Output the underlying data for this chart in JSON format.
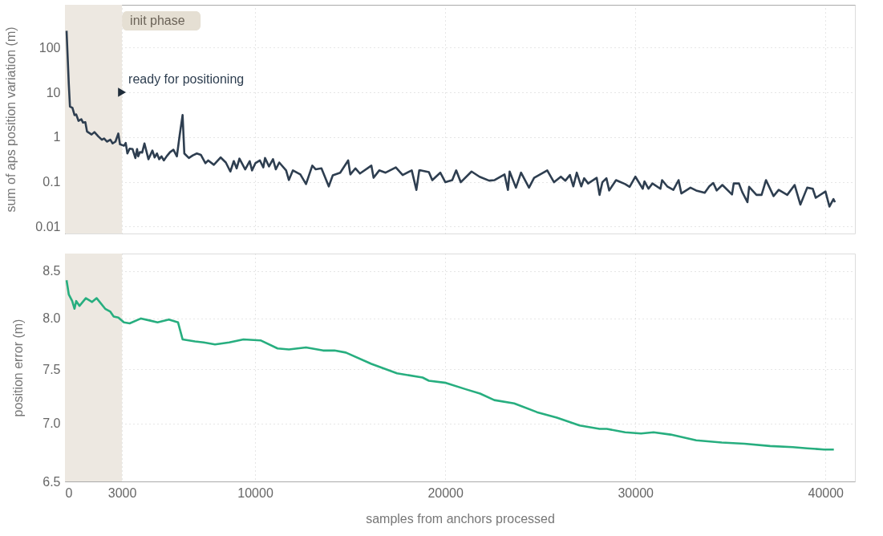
{
  "chart_data": [
    {
      "type": "line",
      "ylabel": "sum of aps position variation (m)",
      "log": true,
      "grid": true,
      "marker": "none",
      "line_style": "solid",
      "tick_labels": "y",
      "xlim": [
        0,
        41550
      ],
      "xticks": [
        0,
        3000,
        10000,
        20000,
        30000,
        40000
      ],
      "ylim": [
        0.007,
        900
      ],
      "yticks": [
        0.01,
        0.1,
        1,
        10,
        100
      ],
      "bands": [
        {
          "axis": "x",
          "from": 0,
          "to": 3000,
          "label": "init phase",
          "color": "#ede8e1"
        }
      ],
      "annotations": [
        {
          "text": "ready for positioning",
          "x": 3000,
          "y": 10
        }
      ],
      "series": [
        {
          "color": "#2e3e50",
          "x": [
            84,
            200,
            263,
            393,
            503,
            592,
            712,
            862,
            951,
            1071,
            1160,
            1400,
            1550,
            1760,
            1940,
            2060,
            2207,
            2387,
            2508,
            2656,
            2806,
            2895,
            3103,
            3195,
            3284,
            3403,
            3553,
            3703,
            3793,
            3853,
            3942,
            4062,
            4181,
            4390,
            4600,
            4718,
            4838,
            4958,
            5078,
            5198,
            5347,
            5528,
            5706,
            5887,
            6035,
            6187,
            6278,
            6517,
            6727,
            6937,
            7147,
            7387,
            7535,
            7832,
            8190,
            8460,
            8699,
            8880,
            9030,
            9177,
            9479,
            9717,
            9839,
            10014,
            10254,
            10433,
            10523,
            10733,
            10942,
            11092,
            11270,
            11631,
            11778,
            11990,
            12380,
            12679,
            13010,
            13189,
            13490,
            13876,
            14088,
            14477,
            14895,
            15012,
            15279,
            15515,
            16117,
            16233,
            16530,
            16864,
            17402,
            17763,
            18240,
            18484,
            18634,
            18693,
            19141,
            19320,
            19741,
            20008,
            20368,
            20578,
            20817,
            21385,
            21804,
            22311,
            22600,
            23121,
            23300,
            23389,
            23720,
            23988,
            24407,
            24676,
            25367,
            25723,
            26082,
            26320,
            26559,
            26739,
            26918,
            27157,
            27308,
            27518,
            27966,
            28117,
            28268,
            28478,
            28625,
            28984,
            29461,
            29700,
            30003,
            30391,
            30481,
            30690,
            30900,
            31318,
            31408,
            31678,
            32000,
            32274,
            32420,
            32900,
            33200,
            33650,
            33890,
            34100,
            34280,
            34577,
            35085,
            35175,
            35446,
            35624,
            35896,
            35985,
            36370,
            36640,
            36874,
            37270,
            37540,
            37990,
            38380,
            38680,
            39040,
            39330,
            39490,
            40000,
            40210,
            40420,
            40500
          ],
          "values": [
            237,
            15.7,
            4.8,
            4.5,
            3.1,
            3.2,
            2.3,
            2.5,
            2.1,
            2.15,
            1.33,
            1.14,
            1.29,
            1.03,
            0.87,
            0.93,
            0.79,
            0.87,
            0.72,
            0.79,
            1.2,
            0.69,
            0.64,
            0.74,
            0.43,
            0.55,
            0.54,
            0.34,
            0.54,
            0.37,
            0.46,
            0.45,
            0.72,
            0.32,
            0.5,
            0.35,
            0.43,
            0.32,
            0.37,
            0.3,
            0.37,
            0.46,
            0.52,
            0.37,
            1.11,
            3.1,
            0.43,
            0.34,
            0.39,
            0.43,
            0.4,
            0.26,
            0.3,
            0.24,
            0.35,
            0.27,
            0.17,
            0.29,
            0.2,
            0.33,
            0.19,
            0.29,
            0.18,
            0.26,
            0.3,
            0.21,
            0.34,
            0.22,
            0.32,
            0.19,
            0.27,
            0.18,
            0.11,
            0.18,
            0.146,
            0.089,
            0.23,
            0.19,
            0.2,
            0.079,
            0.14,
            0.16,
            0.3,
            0.146,
            0.2,
            0.153,
            0.23,
            0.123,
            0.18,
            0.16,
            0.21,
            0.142,
            0.18,
            0.066,
            0.18,
            0.18,
            0.165,
            0.109,
            0.16,
            0.098,
            0.109,
            0.18,
            0.098,
            0.17,
            0.13,
            0.106,
            0.109,
            0.146,
            0.066,
            0.17,
            0.074,
            0.16,
            0.074,
            0.123,
            0.18,
            0.098,
            0.13,
            0.106,
            0.142,
            0.079,
            0.16,
            0.079,
            0.12,
            0.092,
            0.123,
            0.051,
            0.098,
            0.12,
            0.064,
            0.109,
            0.089,
            0.077,
            0.13,
            0.07,
            0.102,
            0.07,
            0.092,
            0.07,
            0.109,
            0.079,
            0.066,
            0.109,
            0.055,
            0.074,
            0.064,
            0.057,
            0.079,
            0.094,
            0.064,
            0.085,
            0.052,
            0.092,
            0.092,
            0.059,
            0.035,
            0.077,
            0.051,
            0.051,
            0.109,
            0.048,
            0.066,
            0.051,
            0.085,
            0.031,
            0.074,
            0.07,
            0.044,
            0.061,
            0.028,
            0.041,
            0.035
          ]
        }
      ]
    },
    {
      "type": "line",
      "xlabel": "samples from anchors processed",
      "ylabel": "position error (m)",
      "log": true,
      "grid": true,
      "marker": "none",
      "line_style": "solid",
      "xlim": [
        0,
        41550
      ],
      "xticks": [
        0,
        3000,
        10000,
        20000,
        30000,
        40000
      ],
      "ylim": [
        6.5,
        8.69
      ],
      "yticks": [
        6.5,
        {
          "value": 7,
          "label": "7.0"
        },
        7.5,
        {
          "value": 8,
          "label": "8.0"
        },
        8.5
      ],
      "bands": [
        {
          "axis": "x",
          "from": 0,
          "to": 3000,
          "color": "#ede8e1"
        }
      ],
      "series": [
        {
          "color": "#27ae7f",
          "x": [
            84,
            200,
            380,
            503,
            592,
            766,
            1098,
            1428,
            1667,
            2114,
            2387,
            2563,
            2806,
            3103,
            3403,
            4000,
            4450,
            4869,
            5466,
            5948,
            6187,
            6843,
            7295,
            7893,
            8640,
            9387,
            10285,
            11183,
            11780,
            12679,
            13576,
            14175,
            14773,
            16117,
            17466,
            18810,
            19141,
            20037,
            21084,
            21834,
            22581,
            23628,
            24826,
            25873,
            27070,
            28118,
            28500,
            29461,
            30300,
            30957,
            31855,
            33200,
            34545,
            35740,
            37090,
            38285,
            39035,
            39930,
            40440
          ],
          "values": [
            8.4,
            8.25,
            8.18,
            8.1,
            8.18,
            8.13,
            8.21,
            8.17,
            8.21,
            8.1,
            8.07,
            8.02,
            8.01,
            7.96,
            7.95,
            8.0,
            7.98,
            7.96,
            7.99,
            7.96,
            7.79,
            7.77,
            7.76,
            7.74,
            7.76,
            7.79,
            7.78,
            7.7,
            7.69,
            7.71,
            7.68,
            7.68,
            7.66,
            7.55,
            7.46,
            7.42,
            7.39,
            7.37,
            7.31,
            7.27,
            7.21,
            7.18,
            7.1,
            7.05,
            6.98,
            6.95,
            6.95,
            6.92,
            6.91,
            6.92,
            6.9,
            6.85,
            6.83,
            6.82,
            6.8,
            6.79,
            6.78,
            6.77,
            6.77
          ]
        }
      ]
    }
  ]
}
